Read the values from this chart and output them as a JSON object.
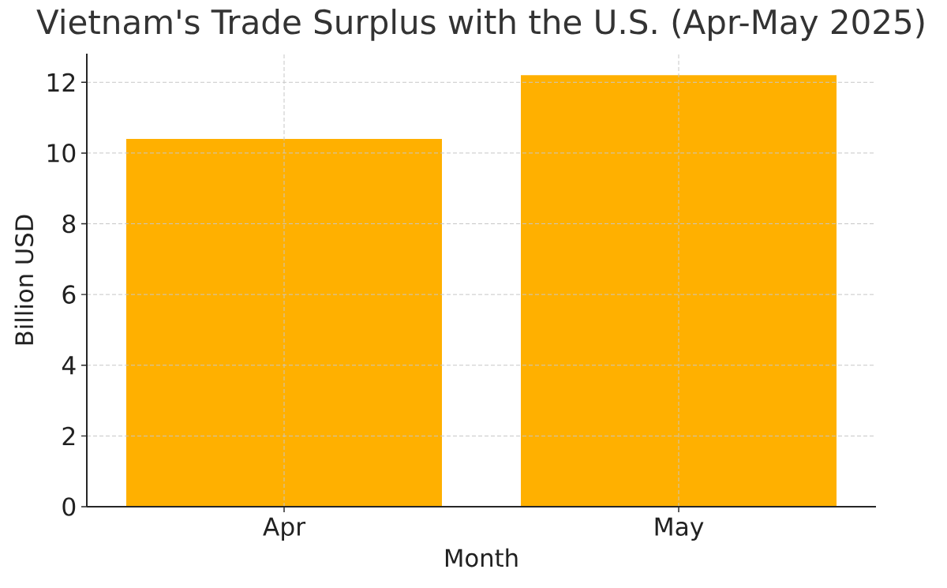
{
  "chart_data": {
    "type": "bar",
    "title": "Vietnam's Trade Surplus with the U.S. (Apr-May 2025)",
    "xlabel": "Month",
    "ylabel": "Billion USD",
    "categories": [
      "Apr",
      "May"
    ],
    "values": [
      10.4,
      12.2
    ],
    "color": "#ffb000",
    "ylim": [
      0,
      12.81
    ],
    "yticks": [
      0,
      2,
      4,
      6,
      8,
      10,
      12
    ],
    "grid": true
  }
}
